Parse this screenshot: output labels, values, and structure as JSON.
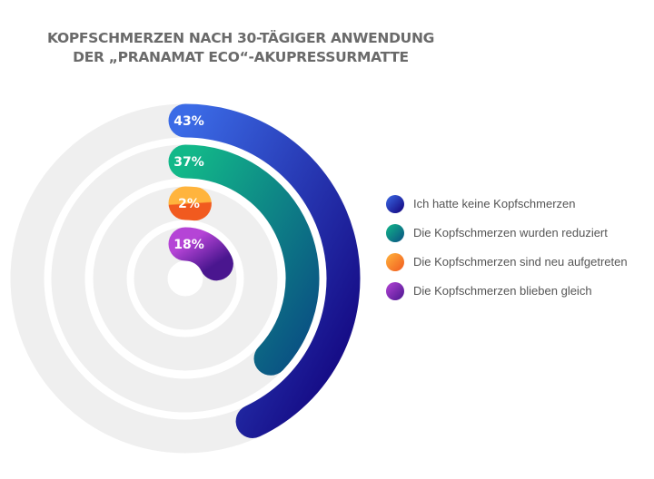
{
  "chart_data": {
    "type": "radial-bar",
    "title_lines": [
      "KOPFSCHMERZEN NACH 30-TÄGIGER ANWENDUNG",
      "DER „PRANAMAT ECO“-AKUPRESSURMATTE"
    ],
    "unit": "%",
    "max": 100,
    "series": [
      {
        "name": "Ich hatte keine Kopfschmerzen",
        "value": 43,
        "label": "43%",
        "gradient": [
          "#3b6be6",
          "#11007a"
        ]
      },
      {
        "name": "Die Kopfschmerzen wurden reduziert",
        "value": 37,
        "label": "37%",
        "gradient": [
          "#12b889",
          "#0a4f83"
        ]
      },
      {
        "name": "Die Kopfschmerzen sind neu aufgetreten",
        "value": 2,
        "label": "2%",
        "gradient": [
          "#ffb43d",
          "#f15a1f"
        ]
      },
      {
        "name": "Die Kopfschmerzen blieben gleich",
        "value": 18,
        "label": "18%",
        "gradient": [
          "#b544d6",
          "#4a168f"
        ]
      }
    ],
    "track_color": "#efefef",
    "legend_position": "right"
  }
}
